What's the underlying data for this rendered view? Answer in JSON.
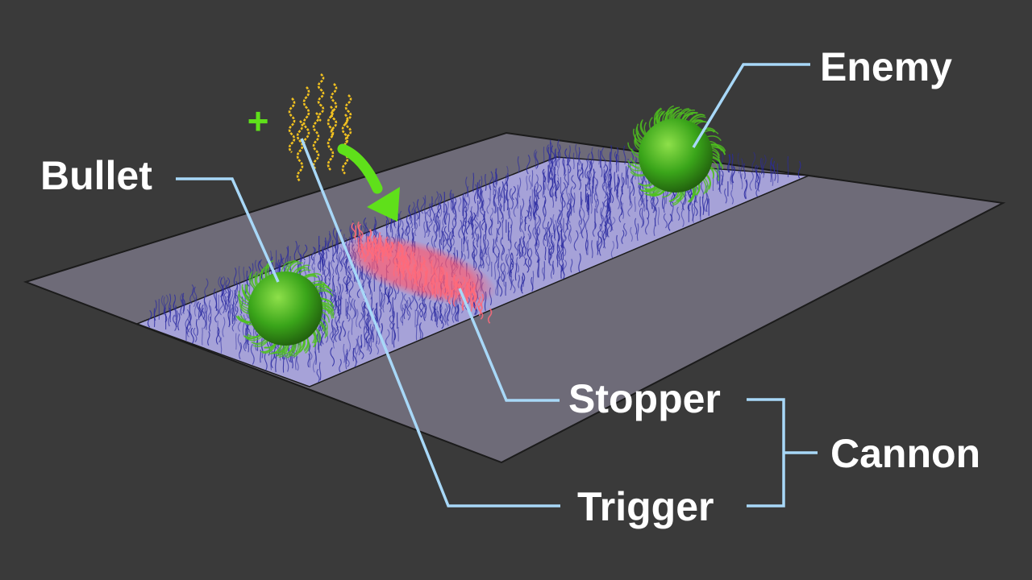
{
  "labels": {
    "enemy": "Enemy",
    "bullet": "Bullet",
    "stopper": "Stopper",
    "trigger": "Trigger",
    "cannon": "Cannon"
  },
  "add_symbol": "+",
  "colors": {
    "background": "#3a3a3a",
    "platform": "#6e6b78",
    "track": "#a6a2d8",
    "strand": "#2a2aa0",
    "stopper": "#ff6a7a",
    "sphere": "#3aa51a",
    "trigger_strand": "#f0c020",
    "arrow": "#5fe01a",
    "leader_line": "#a8d8f8",
    "label_text": "#ffffff"
  }
}
